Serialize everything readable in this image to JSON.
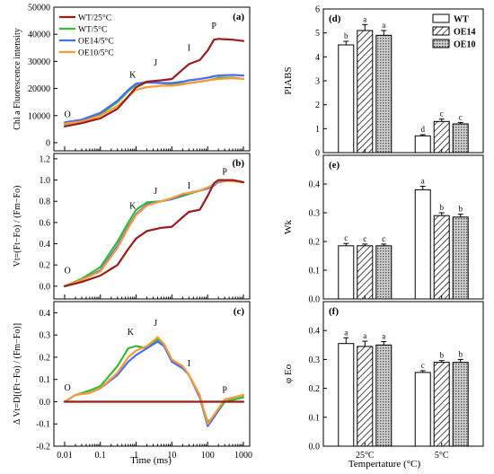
{
  "colors": {
    "wt25": "#9b1b1b",
    "wt5": "#33bb33",
    "oe14": "#4b6bff",
    "oe10": "#ff9b33",
    "axis": "#000000",
    "zero_line": "#b00000"
  },
  "left": {
    "xlabel": "Time (ms)",
    "xticks": [
      0.01,
      0.1,
      1,
      10,
      100,
      1000
    ],
    "xtick_labels": [
      "0.01",
      "0.1",
      "1",
      "10",
      "100",
      "1000"
    ],
    "xlim": [
      0.005,
      1500
    ],
    "legend": [
      {
        "key": "wt25",
        "label": "WT/25°C"
      },
      {
        "key": "wt5",
        "label": "WT/5°C"
      },
      {
        "key": "oe14",
        "label": "OE14/5°C"
      },
      {
        "key": "oe10",
        "label": "OE10/5°C"
      }
    ]
  },
  "right": {
    "xlabel": "Tempertature (°C)",
    "groups": [
      "25°C",
      "5°C"
    ],
    "legend": [
      "WT",
      "OE14",
      "OE10"
    ]
  },
  "chart_data": [
    {
      "type": "line",
      "panel": "(a)",
      "xscale": "log",
      "ylabel": "Chl a Fluorescence intensity",
      "ylim": [
        -3000,
        50000
      ],
      "yticks": [
        0,
        10000,
        20000,
        30000,
        40000,
        50000
      ],
      "ytick_labels": [
        "0",
        "10000",
        "20000",
        "30000",
        "40000",
        "50000"
      ],
      "x": [
        0.01,
        0.03,
        0.1,
        0.3,
        0.6,
        1,
        2,
        5,
        10,
        20,
        30,
        60,
        100,
        150,
        200,
        500,
        1000
      ],
      "series": [
        {
          "name": "WT/25°C",
          "key": "wt25",
          "values": [
            6000,
            7200,
            9000,
            12500,
            17000,
            20500,
            22500,
            23000,
            23500,
            27000,
            29000,
            30500,
            34000,
            38000,
            38300,
            38000,
            37500
          ]
        },
        {
          "name": "WT/5°C",
          "key": "wt5",
          "values": [
            6800,
            8000,
            10500,
            15000,
            19000,
            21500,
            22500,
            22000,
            21500,
            21700,
            22000,
            22500,
            23000,
            23500,
            24000,
            24000,
            23500
          ]
        },
        {
          "name": "OE14/5°C",
          "key": "oe14",
          "values": [
            7500,
            8500,
            11000,
            15500,
            19500,
            21800,
            22200,
            22000,
            22000,
            22500,
            23000,
            23500,
            24000,
            24500,
            24800,
            25000,
            24800
          ]
        },
        {
          "name": "OE10/5°C",
          "key": "oe10",
          "values": [
            7000,
            7800,
            10000,
            13500,
            17000,
            19500,
            20500,
            21000,
            21000,
            21500,
            22000,
            22500,
            23000,
            23300,
            23500,
            23800,
            23500
          ]
        }
      ],
      "annotations": [
        {
          "text": "O",
          "x": 0.012,
          "y": 9500
        },
        {
          "text": "K",
          "x": 0.8,
          "y": 24000
        },
        {
          "text": "J",
          "x": 3.5,
          "y": 28500
        },
        {
          "text": "I",
          "x": 30,
          "y": 34000
        },
        {
          "text": "P",
          "x": 150,
          "y": 42000
        }
      ]
    },
    {
      "type": "line",
      "panel": "(b)",
      "xscale": "log",
      "ylabel": "Vt=(Ft−Fo) / (Fm−Fo)",
      "ylim": [
        -0.12,
        1.25
      ],
      "yticks": [
        0,
        0.2,
        0.4,
        0.6,
        0.8,
        1.0,
        1.2
      ],
      "ytick_labels": [
        "0.0",
        "0.2",
        "0.4",
        "0.6",
        "0.8",
        "1.0",
        "1.2"
      ],
      "x": [
        0.01,
        0.03,
        0.1,
        0.3,
        0.6,
        1,
        2,
        5,
        10,
        20,
        30,
        60,
        100,
        150,
        200,
        500,
        1000
      ],
      "series": [
        {
          "name": "WT/25°C",
          "key": "wt25",
          "values": [
            0,
            0.04,
            0.1,
            0.2,
            0.35,
            0.45,
            0.52,
            0.55,
            0.56,
            0.65,
            0.7,
            0.72,
            0.85,
            0.97,
            1.0,
            1.0,
            0.98
          ]
        },
        {
          "name": "WT/5°C",
          "key": "wt5",
          "values": [
            0,
            0.07,
            0.18,
            0.42,
            0.6,
            0.72,
            0.79,
            0.8,
            0.82,
            0.85,
            0.87,
            0.9,
            0.92,
            0.95,
            1.0,
            0.99,
            0.98
          ]
        },
        {
          "name": "OE14/5°C",
          "key": "oe14",
          "values": [
            0,
            0.06,
            0.15,
            0.38,
            0.56,
            0.68,
            0.77,
            0.8,
            0.82,
            0.86,
            0.88,
            0.9,
            0.92,
            0.95,
            0.98,
            1.0,
            0.98
          ]
        },
        {
          "name": "OE10/5°C",
          "key": "oe10",
          "values": [
            0,
            0.06,
            0.14,
            0.36,
            0.55,
            0.67,
            0.76,
            0.8,
            0.83,
            0.87,
            0.88,
            0.9,
            0.93,
            0.96,
            0.99,
            0.99,
            0.98
          ]
        }
      ],
      "annotations": [
        {
          "text": "O",
          "x": 0.012,
          "y": 0.12
        },
        {
          "text": "K",
          "x": 0.8,
          "y": 0.73
        },
        {
          "text": "J",
          "x": 3.5,
          "y": 0.87
        },
        {
          "text": "I",
          "x": 30,
          "y": 0.92
        },
        {
          "text": "P",
          "x": 300,
          "y": 1.05
        }
      ]
    },
    {
      "type": "line",
      "panel": "(c)",
      "xscale": "log",
      "ylabel": "Δ Vt=D[(Ft−Fo) / (Fm−Fo)]",
      "ylim": [
        -0.2,
        0.45
      ],
      "yticks": [
        -0.2,
        -0.1,
        0,
        0.1,
        0.2,
        0.3,
        0.4
      ],
      "ytick_labels": [
        "-0.2",
        "-0.1",
        "0.0",
        "0.1",
        "0.2",
        "0.3",
        "0.4"
      ],
      "x": [
        0.01,
        0.02,
        0.05,
        0.1,
        0.3,
        0.6,
        1,
        2,
        4,
        6,
        10,
        20,
        30,
        60,
        100,
        150,
        300,
        1000
      ],
      "series": [
        {
          "name": "WT/25°C",
          "key": "wt25",
          "values": [
            0,
            0,
            0,
            0,
            0,
            0,
            0,
            0,
            0,
            0,
            0,
            0,
            0,
            0,
            0,
            0,
            0,
            0
          ]
        },
        {
          "name": "WT/5°C",
          "key": "wt5",
          "values": [
            0,
            0.03,
            0.05,
            0.07,
            0.16,
            0.24,
            0.25,
            0.24,
            0.28,
            0.26,
            0.18,
            0.16,
            0.12,
            0.02,
            -0.09,
            -0.07,
            0.0,
            0.02
          ]
        },
        {
          "name": "OE14/5°C",
          "key": "oe14",
          "values": [
            0,
            0.03,
            0.04,
            0.06,
            0.12,
            0.18,
            0.21,
            0.24,
            0.27,
            0.25,
            0.18,
            0.15,
            0.12,
            0.02,
            -0.11,
            -0.07,
            0.01,
            0.03
          ]
        },
        {
          "name": "OE10/5°C",
          "key": "oe10",
          "values": [
            0,
            0.03,
            0.04,
            0.06,
            0.13,
            0.2,
            0.23,
            0.25,
            0.29,
            0.26,
            0.19,
            0.16,
            0.12,
            0.03,
            -0.1,
            -0.06,
            0.01,
            0.03
          ]
        }
      ],
      "annotations": [
        {
          "text": "O",
          "x": 0.012,
          "y": 0.05
        },
        {
          "text": "K",
          "x": 0.7,
          "y": 0.3
        },
        {
          "text": "J",
          "x": 3.5,
          "y": 0.34
        },
        {
          "text": "I",
          "x": 30,
          "y": 0.16
        },
        {
          "text": "P",
          "x": 300,
          "y": 0.04
        }
      ]
    },
    {
      "type": "bar",
      "panel": "(d)",
      "ylabel": "PIABS",
      "ylim": [
        0,
        6
      ],
      "yticks": [
        0,
        1,
        2,
        3,
        4,
        5,
        6
      ],
      "ytick_labels": [
        "0",
        "1",
        "2",
        "3",
        "4",
        "5",
        "6"
      ],
      "categories": [
        "25°C",
        "5°C"
      ],
      "series": [
        {
          "name": "WT",
          "values": [
            4.5,
            0.7
          ],
          "errors": [
            0.15,
            0.05
          ],
          "letters": [
            "b",
            "d"
          ]
        },
        {
          "name": "OE14",
          "values": [
            5.1,
            1.3
          ],
          "errors": [
            0.25,
            0.1
          ],
          "letters": [
            "a",
            "c"
          ]
        },
        {
          "name": "OE10",
          "values": [
            4.9,
            1.2
          ],
          "errors": [
            0.2,
            0.06
          ],
          "letters": [
            "a",
            "c"
          ]
        }
      ]
    },
    {
      "type": "bar",
      "panel": "(e)",
      "ylabel": "Wk",
      "ylim": [
        0,
        0.5
      ],
      "yticks": [
        0,
        0.1,
        0.2,
        0.3,
        0.4
      ],
      "ytick_labels": [
        "0.0",
        "0.1",
        "0.2",
        "0.3",
        "0.4"
      ],
      "categories": [
        "25°C",
        "5°C"
      ],
      "series": [
        {
          "name": "WT",
          "values": [
            0.185,
            0.38
          ],
          "errors": [
            0.008,
            0.012
          ],
          "letters": [
            "c",
            "a"
          ]
        },
        {
          "name": "OE14",
          "values": [
            0.185,
            0.29
          ],
          "errors": [
            0.006,
            0.01
          ],
          "letters": [
            "c",
            "b"
          ]
        },
        {
          "name": "OE10",
          "values": [
            0.185,
            0.285
          ],
          "errors": [
            0.006,
            0.01
          ],
          "letters": [
            "c",
            "b"
          ]
        }
      ]
    },
    {
      "type": "bar",
      "panel": "(f)",
      "ylabel": "φ Eo",
      "ylim": [
        0,
        0.5
      ],
      "yticks": [
        0,
        0.1,
        0.2,
        0.3,
        0.4
      ],
      "ytick_labels": [
        "0.0",
        "0.1",
        "0.2",
        "0.3",
        "0.4"
      ],
      "categories": [
        "25°C",
        "5°C"
      ],
      "series": [
        {
          "name": "WT",
          "values": [
            0.355,
            0.255
          ],
          "errors": [
            0.02,
            0.006
          ],
          "letters": [
            "a",
            "c"
          ]
        },
        {
          "name": "OE14",
          "values": [
            0.345,
            0.29
          ],
          "errors": [
            0.018,
            0.006
          ],
          "letters": [
            "a",
            "b"
          ]
        },
        {
          "name": "OE10",
          "values": [
            0.35,
            0.29
          ],
          "errors": [
            0.012,
            0.01
          ],
          "letters": [
            "a",
            "b"
          ]
        }
      ]
    }
  ]
}
